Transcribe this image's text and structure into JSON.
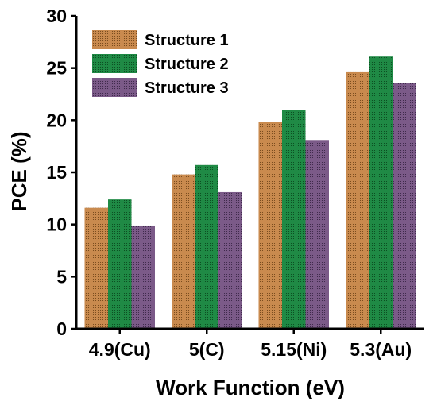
{
  "chart_data": {
    "type": "bar",
    "title": "",
    "xlabel": "Work Function (eV)",
    "ylabel": "PCE (%)",
    "categories": [
      "4.9(Cu)",
      "5(C)",
      "5.15(Ni)",
      "5.3(Au)"
    ],
    "ylim": [
      0,
      30
    ],
    "yticks": [
      0,
      5,
      10,
      15,
      20,
      25,
      30
    ],
    "grid": false,
    "legend": "top-left",
    "series": [
      {
        "name": "Structure 1",
        "values": [
          11.6,
          14.8,
          19.8,
          24.6
        ],
        "color": "#c98a4e"
      },
      {
        "name": "Structure 2",
        "values": [
          12.4,
          15.7,
          21.0,
          26.1
        ],
        "color": "#1f8a45"
      },
      {
        "name": "Structure 3",
        "values": [
          9.9,
          13.1,
          18.1,
          23.6
        ],
        "color": "#7b5a88"
      }
    ]
  }
}
